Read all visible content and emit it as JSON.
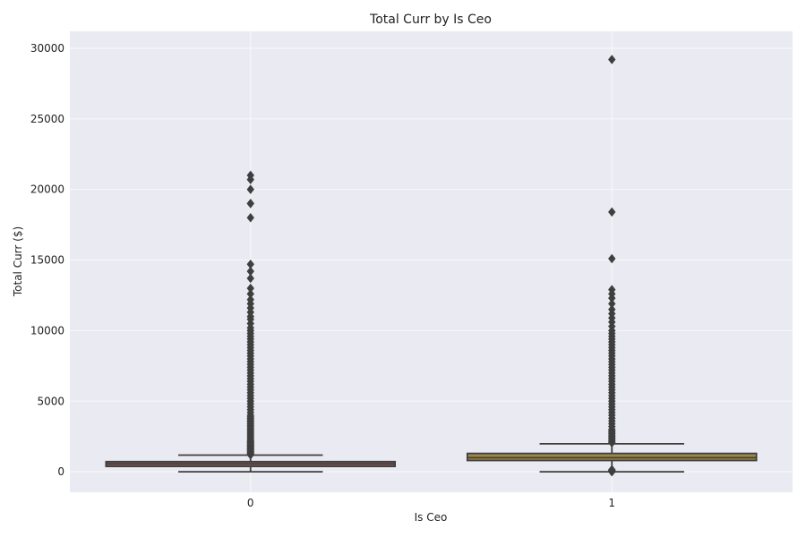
{
  "chart_data": {
    "type": "box",
    "title": "Total Curr by Is Ceo",
    "xlabel": "Is Ceo",
    "ylabel": "Total Curr ($)",
    "categories": [
      "0",
      "1"
    ],
    "ylim": [
      -1450,
      31200
    ],
    "yticks": [
      0,
      5000,
      10000,
      15000,
      20000,
      25000,
      30000
    ],
    "grid": true,
    "background": "#eaeaf2",
    "boxes": [
      {
        "category": "0",
        "color": "#8c5a5a",
        "whisker_low": 0,
        "q1": 380,
        "median": 560,
        "q3": 720,
        "whisker_high": 1180,
        "outliers": [
          1200,
          1250,
          1300,
          1350,
          1400,
          1450,
          1500,
          1550,
          1600,
          1650,
          1700,
          1750,
          1800,
          1850,
          1900,
          1950,
          2000,
          2050,
          2100,
          2150,
          2200,
          2300,
          2400,
          2500,
          2600,
          2700,
          2800,
          2900,
          3000,
          3100,
          3200,
          3300,
          3400,
          3500,
          3600,
          3700,
          3800,
          3900,
          4000,
          4200,
          4400,
          4600,
          4800,
          5000,
          5200,
          5400,
          5600,
          5800,
          6000,
          6200,
          6400,
          6600,
          6800,
          7000,
          7200,
          7400,
          7600,
          7800,
          8000,
          8200,
          8400,
          8600,
          8800,
          9000,
          9200,
          9400,
          9600,
          9800,
          10000,
          10200,
          10500,
          10800,
          11000,
          11300,
          11600,
          11900,
          12200,
          12600,
          13000,
          13700,
          14200,
          14700,
          18000,
          19000,
          19000,
          20000,
          20700,
          21000
        ]
      },
      {
        "category": "1",
        "color": "#a08842",
        "whisker_low": 0,
        "q1": 800,
        "median": 1000,
        "q3": 1300,
        "whisker_high": 1980,
        "outliers": [
          0,
          20,
          50,
          80,
          120,
          150,
          2050,
          2100,
          2200,
          2300,
          2400,
          2500,
          2600,
          2700,
          2800,
          2900,
          3000,
          3200,
          3400,
          3600,
          3800,
          4000,
          4200,
          4400,
          4600,
          4800,
          5000,
          5200,
          5400,
          5600,
          5800,
          6000,
          6200,
          6400,
          6600,
          6800,
          7000,
          7200,
          7400,
          7600,
          7800,
          8000,
          8200,
          8400,
          8600,
          8800,
          9000,
          9200,
          9400,
          9600,
          9800,
          10000,
          10300,
          10600,
          10900,
          11200,
          11500,
          11900,
          12300,
          12600,
          12900,
          15100,
          18400,
          29200
        ]
      }
    ]
  }
}
